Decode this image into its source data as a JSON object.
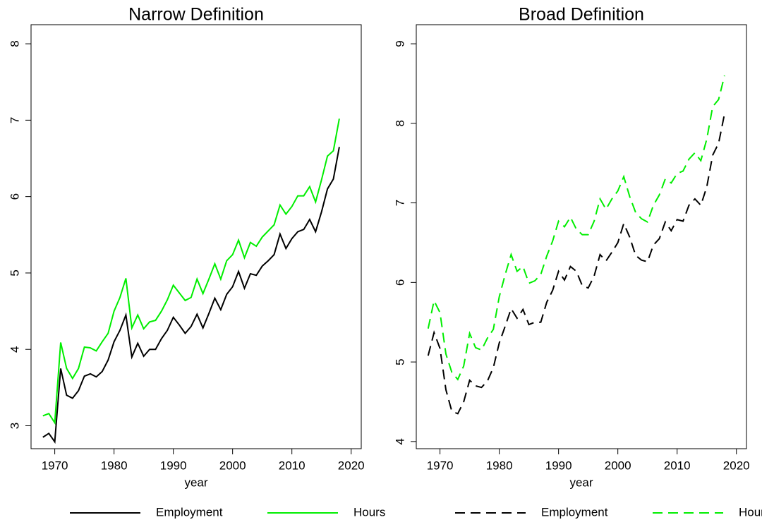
{
  "chart_data": [
    {
      "type": "line",
      "title": "Narrow Definition",
      "x_label": "year",
      "x": [
        1968,
        1969,
        1970,
        1971,
        1972,
        1973,
        1974,
        1975,
        1976,
        1977,
        1978,
        1979,
        1980,
        1981,
        1982,
        1983,
        1984,
        1985,
        1986,
        1987,
        1988,
        1989,
        1990,
        1991,
        1992,
        1993,
        1994,
        1995,
        1996,
        1997,
        1998,
        1999,
        2000,
        2001,
        2002,
        2003,
        2004,
        2005,
        2006,
        2007,
        2008,
        2009,
        2010,
        2011,
        2012,
        2013,
        2014,
        2015,
        2016,
        2017,
        2018
      ],
      "series": [
        {
          "name": "Employment",
          "color": "#000000",
          "values": [
            2.85,
            2.9,
            2.79,
            3.75,
            3.4,
            3.36,
            3.46,
            3.65,
            3.68,
            3.64,
            3.71,
            3.86,
            4.1,
            4.25,
            4.45,
            3.9,
            4.08,
            3.91,
            4.0,
            4.0,
            4.14,
            4.25,
            4.42,
            4.32,
            4.21,
            4.3,
            4.46,
            4.28,
            4.47,
            4.67,
            4.52,
            4.72,
            4.82,
            5.02,
            4.8,
            4.99,
            4.97,
            5.09,
            5.16,
            5.24,
            5.51,
            5.32,
            5.45,
            5.54,
            5.57,
            5.7,
            5.54,
            5.8,
            6.1,
            6.23,
            6.65
          ]
        },
        {
          "name": "Hours",
          "color": "#00ee00",
          "values": [
            3.13,
            3.16,
            3.04,
            4.09,
            3.75,
            3.62,
            3.75,
            4.03,
            4.02,
            3.98,
            4.1,
            4.21,
            4.5,
            4.68,
            4.93,
            4.28,
            4.45,
            4.27,
            4.36,
            4.38,
            4.5,
            4.65,
            4.84,
            4.74,
            4.64,
            4.68,
            4.92,
            4.73,
            4.92,
            5.12,
            4.92,
            5.16,
            5.24,
            5.43,
            5.2,
            5.4,
            5.35,
            5.47,
            5.55,
            5.63,
            5.89,
            5.77,
            5.87,
            6.01,
            6.01,
            6.13,
            5.93,
            6.22,
            6.53,
            6.6,
            7.02
          ]
        }
      ],
      "line_style": "solid",
      "xlim": [
        1966,
        2021.7
      ],
      "xticks": [
        1970,
        1980,
        1990,
        2000,
        2010,
        2020
      ],
      "ylim": [
        2.7,
        8.25
      ],
      "yticks": [
        3,
        4,
        5,
        6,
        7,
        8
      ],
      "legend": "bottom"
    },
    {
      "type": "line",
      "title": "Broad Definition",
      "x_label": "year",
      "x": [
        1968,
        1969,
        1970,
        1971,
        1972,
        1973,
        1974,
        1975,
        1976,
        1977,
        1978,
        1979,
        1980,
        1981,
        1982,
        1983,
        1984,
        1985,
        1986,
        1987,
        1988,
        1989,
        1990,
        1991,
        1992,
        1993,
        1994,
        1995,
        1996,
        1997,
        1998,
        1999,
        2000,
        2001,
        2002,
        2003,
        2004,
        2005,
        2006,
        2007,
        2008,
        2009,
        2010,
        2011,
        2012,
        2013,
        2014,
        2015,
        2016,
        2017,
        2018
      ],
      "series": [
        {
          "name": "Employment",
          "color": "#000000",
          "values": [
            5.08,
            5.37,
            5.17,
            4.65,
            4.38,
            4.35,
            4.5,
            4.77,
            4.7,
            4.68,
            4.76,
            4.93,
            5.24,
            5.45,
            5.67,
            5.55,
            5.66,
            5.47,
            5.5,
            5.5,
            5.75,
            5.9,
            6.14,
            6.03,
            6.2,
            6.14,
            5.96,
            5.93,
            6.08,
            6.35,
            6.27,
            6.38,
            6.5,
            6.74,
            6.57,
            6.34,
            6.28,
            6.26,
            6.47,
            6.55,
            6.76,
            6.65,
            6.79,
            6.77,
            6.97,
            7.05,
            6.97,
            7.2,
            7.6,
            7.75,
            8.12
          ]
        },
        {
          "name": "Hours",
          "color": "#00ee00",
          "values": [
            5.42,
            5.77,
            5.62,
            5.1,
            4.87,
            4.78,
            4.95,
            5.36,
            5.18,
            5.15,
            5.3,
            5.41,
            5.82,
            6.1,
            6.35,
            6.14,
            6.2,
            5.99,
            6.02,
            6.1,
            6.33,
            6.52,
            6.77,
            6.7,
            6.82,
            6.67,
            6.6,
            6.6,
            6.77,
            7.05,
            6.92,
            7.05,
            7.15,
            7.33,
            7.08,
            6.88,
            6.8,
            6.76,
            6.97,
            7.1,
            7.3,
            7.25,
            7.37,
            7.4,
            7.55,
            7.63,
            7.53,
            7.8,
            8.21,
            8.3,
            8.6
          ]
        }
      ],
      "line_style": "dashed",
      "xlim": [
        1966,
        2021.7
      ],
      "xticks": [
        1970,
        1980,
        1990,
        2000,
        2010,
        2020
      ],
      "ylim": [
        3.91,
        9.24
      ],
      "yticks": [
        4,
        5,
        6,
        7,
        8,
        9
      ],
      "legend": "bottom"
    }
  ]
}
